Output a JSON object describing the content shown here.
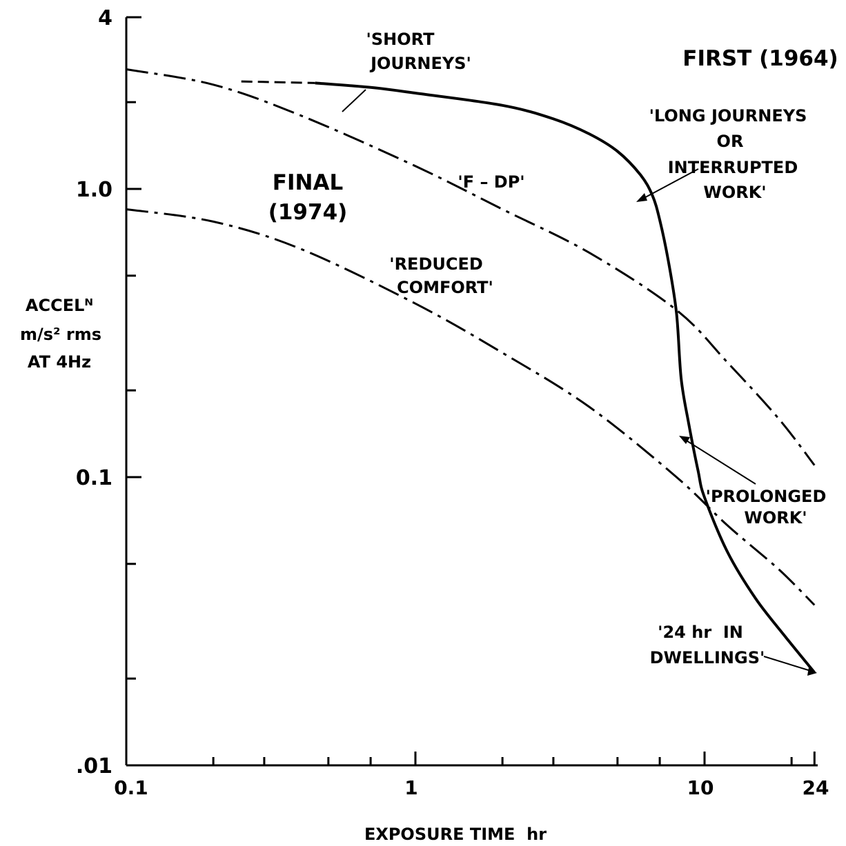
{
  "chart_data": {
    "type": "line",
    "x_scale": "log",
    "y_scale": "log",
    "xlim": [
      0.1,
      24
    ],
    "ylim": [
      0.01,
      4
    ],
    "x_ticks": [
      {
        "value": 0.1,
        "label": "0.1"
      },
      {
        "value": 1,
        "label": "1"
      },
      {
        "value": 10,
        "label": "10"
      },
      {
        "value": 24,
        "label": "24"
      }
    ],
    "y_ticks": [
      {
        "value": 0.01,
        "label": ".01"
      },
      {
        "value": 0.1,
        "label": "0.1"
      },
      {
        "value": 1.0,
        "label": "1.0"
      },
      {
        "value": 4,
        "label": "4"
      }
    ],
    "xlabel": "EXPOSURE TIME  hr",
    "ylabel": [
      "ACCELᴺ",
      "m/s² rms",
      "AT 4Hz"
    ],
    "grid": false,
    "legend": "none",
    "headings": {
      "first": "FIRST (1964)",
      "final": [
        "FINAL",
        "(1974)"
      ]
    },
    "series": [
      {
        "style": "solid",
        "label": "'SHORT JOURNEYS'",
        "dashed_start": [
          [
            0.25,
            2.36
          ],
          [
            0.45,
            2.33
          ]
        ],
        "points": [
          [
            0.45,
            2.33
          ],
          [
            0.7,
            2.25
          ],
          [
            1.0,
            2.15
          ],
          [
            2.0,
            1.95
          ],
          [
            3.0,
            1.75
          ],
          [
            4.0,
            1.55
          ],
          [
            5.0,
            1.35
          ],
          [
            6.0,
            1.12
          ],
          [
            6.6,
            0.95
          ],
          [
            7.0,
            0.78
          ],
          [
            7.5,
            0.56
          ],
          [
            8.0,
            0.37
          ],
          [
            8.3,
            0.22
          ],
          [
            8.8,
            0.155
          ],
          [
            9.5,
            0.105
          ],
          [
            10.0,
            0.085
          ],
          [
            12.0,
            0.055
          ],
          [
            15.0,
            0.038
          ],
          [
            19.0,
            0.028
          ],
          [
            24.0,
            0.021
          ]
        ]
      },
      {
        "style": "dashdot",
        "label": "'F-DP'",
        "points": [
          [
            0.1,
            2.6
          ],
          [
            0.2,
            2.3
          ],
          [
            0.4,
            1.8
          ],
          [
            1.0,
            1.2
          ],
          [
            2.0,
            0.85
          ],
          [
            4.0,
            0.6
          ],
          [
            8.0,
            0.38
          ],
          [
            12.0,
            0.25
          ],
          [
            18.0,
            0.16
          ],
          [
            24.0,
            0.11
          ]
        ]
      },
      {
        "style": "dashdot",
        "label": "'REDUCED COMFORT'",
        "points": [
          [
            0.1,
            0.85
          ],
          [
            0.2,
            0.77
          ],
          [
            0.4,
            0.62
          ],
          [
            1.0,
            0.4
          ],
          [
            2.0,
            0.27
          ],
          [
            4.0,
            0.175
          ],
          [
            8.0,
            0.1
          ],
          [
            12.0,
            0.068
          ],
          [
            18.0,
            0.048
          ],
          [
            24.0,
            0.036
          ]
        ]
      }
    ],
    "annotations": {
      "short_journeys": [
        "'SHORT",
        "JOURNEYS'"
      ],
      "long_journeys": [
        "'LONG JOURNEYS",
        "OR",
        "INTERRUPTED",
        "WORK'"
      ],
      "fdp": "'F – DP'",
      "reduced_comfort": [
        "'REDUCED",
        "COMFORT'"
      ],
      "prolonged_work": [
        "'PROLONGED",
        "WORK'"
      ],
      "dwellings": [
        "'24 hr  IN",
        "DWELLINGS'"
      ]
    }
  }
}
